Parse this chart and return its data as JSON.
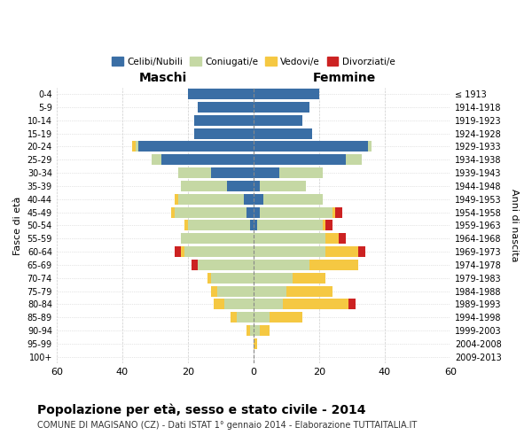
{
  "age_groups": [
    "0-4",
    "5-9",
    "10-14",
    "15-19",
    "20-24",
    "25-29",
    "30-34",
    "35-39",
    "40-44",
    "45-49",
    "50-54",
    "55-59",
    "60-64",
    "65-69",
    "70-74",
    "75-79",
    "80-84",
    "85-89",
    "90-94",
    "95-99",
    "100+"
  ],
  "birth_years": [
    "2009-2013",
    "2004-2008",
    "1999-2003",
    "1994-1998",
    "1989-1993",
    "1984-1988",
    "1979-1983",
    "1974-1978",
    "1969-1973",
    "1964-1968",
    "1959-1963",
    "1954-1958",
    "1949-1953",
    "1944-1948",
    "1939-1943",
    "1934-1938",
    "1929-1933",
    "1924-1928",
    "1919-1923",
    "1914-1918",
    "≤ 1913"
  ],
  "male": {
    "celibi": [
      20,
      17,
      18,
      18,
      35,
      28,
      13,
      8,
      3,
      2,
      1,
      0,
      0,
      0,
      0,
      0,
      0,
      0,
      0,
      0,
      0
    ],
    "coniugati": [
      0,
      0,
      0,
      0,
      1,
      3,
      10,
      14,
      20,
      22,
      19,
      22,
      21,
      17,
      13,
      11,
      9,
      5,
      1,
      0,
      0
    ],
    "vedovi": [
      0,
      0,
      0,
      0,
      1,
      0,
      0,
      0,
      1,
      1,
      1,
      0,
      1,
      0,
      1,
      2,
      3,
      2,
      1,
      0,
      0
    ],
    "divorziati": [
      0,
      0,
      0,
      0,
      0,
      0,
      0,
      0,
      0,
      0,
      0,
      0,
      2,
      2,
      0,
      0,
      0,
      0,
      0,
      0,
      0
    ]
  },
  "female": {
    "nubili": [
      20,
      17,
      15,
      18,
      35,
      28,
      8,
      2,
      3,
      2,
      1,
      0,
      0,
      0,
      0,
      0,
      0,
      0,
      0,
      0,
      0
    ],
    "coniugate": [
      0,
      0,
      0,
      0,
      1,
      5,
      13,
      14,
      18,
      22,
      20,
      22,
      22,
      17,
      12,
      10,
      9,
      5,
      2,
      0,
      0
    ],
    "vedove": [
      0,
      0,
      0,
      0,
      0,
      0,
      0,
      0,
      0,
      1,
      1,
      4,
      10,
      15,
      10,
      14,
      20,
      10,
      3,
      1,
      0
    ],
    "divorziate": [
      0,
      0,
      0,
      0,
      0,
      0,
      0,
      0,
      0,
      2,
      2,
      2,
      2,
      0,
      0,
      0,
      2,
      0,
      0,
      0,
      0
    ]
  },
  "colors": {
    "celibi": "#3a6ea5",
    "coniugati": "#c5d8a4",
    "vedovi": "#f5c842",
    "divorziati": "#cc2222"
  },
  "title": "Popolazione per età, sesso e stato civile - 2014",
  "subtitle": "COMUNE DI MAGISANO (CZ) - Dati ISTAT 1° gennaio 2014 - Elaborazione TUTTAITALIA.IT",
  "xlabel_left": "Maschi",
  "xlabel_right": "Femmine",
  "ylabel_left": "Fasce di età",
  "ylabel_right": "Anni di nascita",
  "xlim": 60,
  "bg_color": "#ffffff",
  "grid_color": "#cccccc"
}
